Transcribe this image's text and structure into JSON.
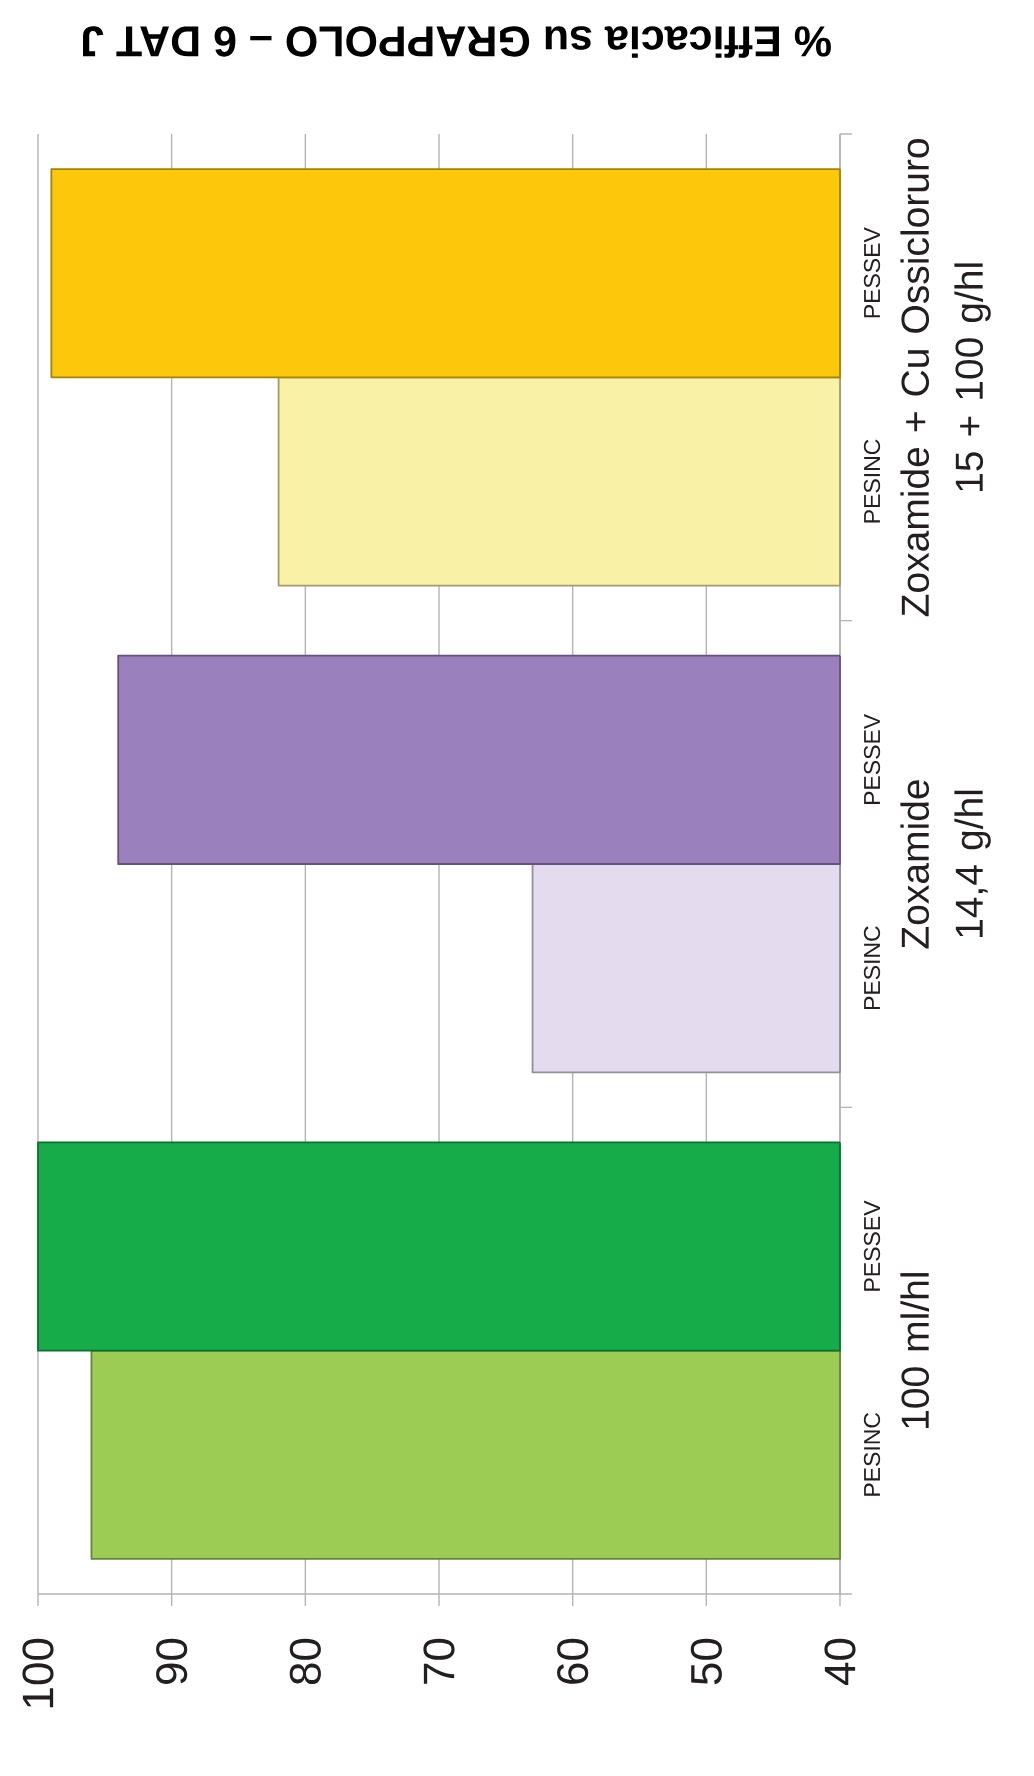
{
  "chart_data": {
    "type": "bar",
    "orientation": "horizontal",
    "title": "% Efficacia su GRAPPOLO – 6 DAT J",
    "categories": [
      "Zoxamide + Cu Ossicloruro\n15 + 100 g/hl",
      "Zoxamide\n14,4 g/hl",
      "100 ml/hl"
    ],
    "series": [
      {
        "name": "PESINC",
        "colors": [
          "#f9f1a5",
          "#e4dcee",
          "#9dcc55"
        ],
        "values": [
          82,
          63,
          96
        ]
      },
      {
        "name": "PESSEV",
        "colors": [
          "#fdc80c",
          "#9a80bd",
          "#16ac4a"
        ],
        "values": [
          99,
          94,
          100
        ]
      }
    ],
    "xlim": [
      100,
      40
    ],
    "xticks": [
      100,
      90,
      80,
      70,
      60,
      50,
      40
    ],
    "grid": "x"
  }
}
